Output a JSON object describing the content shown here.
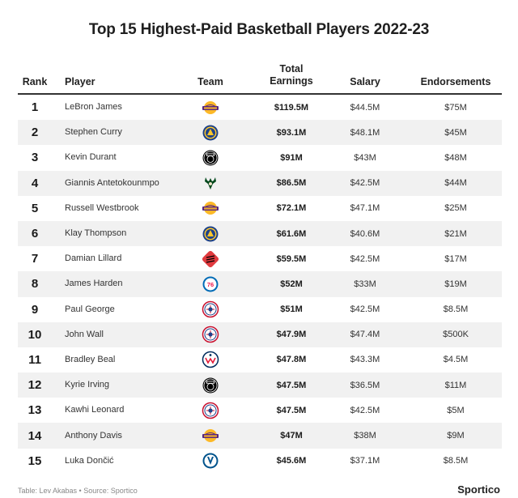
{
  "title": "Top 15 Highest-Paid Basketball Players 2022-23",
  "headers": {
    "rank": "Rank",
    "player": "Player",
    "team": "Team",
    "total_line1": "Total",
    "total_line2": "Earnings",
    "salary": "Salary",
    "endorsements": "Endorsements"
  },
  "footer": {
    "credit": "Table: Lev Akabas • Source: Sportico",
    "brand": "Sportico"
  },
  "team_logos": {
    "lakers": {
      "icon": "lakers-logo-icon",
      "primary": "#552583",
      "accent": "#FDB927"
    },
    "warriors": {
      "icon": "warriors-logo-icon",
      "primary": "#1D428A",
      "accent": "#FFC72C"
    },
    "nets": {
      "icon": "nets-logo-icon",
      "primary": "#000000",
      "accent": "#FFFFFF"
    },
    "bucks": {
      "icon": "bucks-logo-icon",
      "primary": "#00471B",
      "accent": "#EEE1C6"
    },
    "blazers": {
      "icon": "blazers-logo-icon",
      "primary": "#E03A3E",
      "accent": "#000000"
    },
    "76ers": {
      "icon": "76ers-logo-icon",
      "primary": "#006BB6",
      "accent": "#ED174C"
    },
    "clippers": {
      "icon": "clippers-logo-icon",
      "primary": "#C8102E",
      "accent": "#1D428A"
    },
    "wizards": {
      "icon": "wizards-logo-icon",
      "primary": "#002B5C",
      "accent": "#E31837"
    },
    "mavericks": {
      "icon": "mavericks-logo-icon",
      "primary": "#00538C",
      "accent": "#B8C4CA"
    }
  },
  "chart_data": {
    "type": "table",
    "title": "Top 15 Highest-Paid Basketball Players 2022-23",
    "columns": [
      "Rank",
      "Player",
      "Team",
      "Total Earnings",
      "Salary",
      "Endorsements"
    ],
    "rows": [
      {
        "rank": "1",
        "player": "LeBron James",
        "team": "lakers",
        "total": "$119.5M",
        "salary": "$44.5M",
        "endorsements": "$75M"
      },
      {
        "rank": "2",
        "player": "Stephen Curry",
        "team": "warriors",
        "total": "$93.1M",
        "salary": "$48.1M",
        "endorsements": "$45M"
      },
      {
        "rank": "3",
        "player": "Kevin Durant",
        "team": "nets",
        "total": "$91M",
        "salary": "$43M",
        "endorsements": "$48M"
      },
      {
        "rank": "4",
        "player": "Giannis Antetokounmpo",
        "team": "bucks",
        "total": "$86.5M",
        "salary": "$42.5M",
        "endorsements": "$44M"
      },
      {
        "rank": "5",
        "player": "Russell Westbrook",
        "team": "lakers",
        "total": "$72.1M",
        "salary": "$47.1M",
        "endorsements": "$25M"
      },
      {
        "rank": "6",
        "player": "Klay Thompson",
        "team": "warriors",
        "total": "$61.6M",
        "salary": "$40.6M",
        "endorsements": "$21M"
      },
      {
        "rank": "7",
        "player": "Damian Lillard",
        "team": "blazers",
        "total": "$59.5M",
        "salary": "$42.5M",
        "endorsements": "$17M"
      },
      {
        "rank": "8",
        "player": "James Harden",
        "team": "76ers",
        "total": "$52M",
        "salary": "$33M",
        "endorsements": "$19M"
      },
      {
        "rank": "9",
        "player": "Paul George",
        "team": "clippers",
        "total": "$51M",
        "salary": "$42.5M",
        "endorsements": "$8.5M"
      },
      {
        "rank": "10",
        "player": "John Wall",
        "team": "clippers",
        "total": "$47.9M",
        "salary": "$47.4M",
        "endorsements": "$500K"
      },
      {
        "rank": "11",
        "player": "Bradley Beal",
        "team": "wizards",
        "total": "$47.8M",
        "salary": "$43.3M",
        "endorsements": "$4.5M"
      },
      {
        "rank": "12",
        "player": "Kyrie Irving",
        "team": "nets",
        "total": "$47.5M",
        "salary": "$36.5M",
        "endorsements": "$11M"
      },
      {
        "rank": "13",
        "player": "Kawhi Leonard",
        "team": "clippers",
        "total": "$47.5M",
        "salary": "$42.5M",
        "endorsements": "$5M"
      },
      {
        "rank": "14",
        "player": "Anthony Davis",
        "team": "lakers",
        "total": "$47M",
        "salary": "$38M",
        "endorsements": "$9M"
      },
      {
        "rank": "15",
        "player": "Luka Dončić",
        "team": "mavericks",
        "total": "$45.6M",
        "salary": "$37.1M",
        "endorsements": "$8.5M"
      }
    ]
  }
}
